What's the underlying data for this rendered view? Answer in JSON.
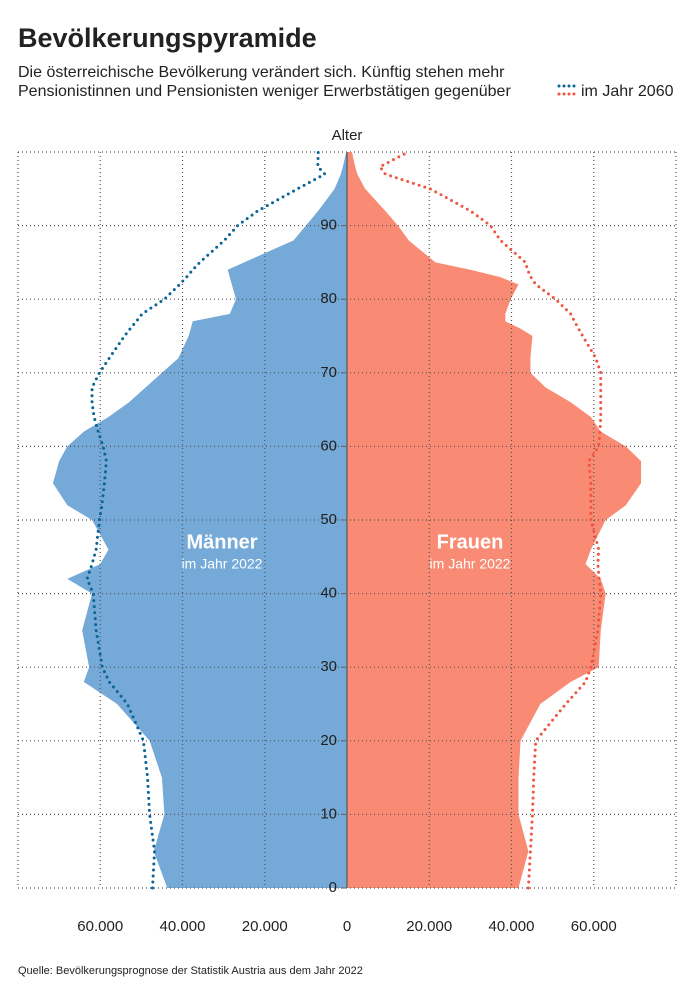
{
  "chart_data": {
    "type": "pyramid",
    "title": "Bevölkerungspyramide",
    "subtitle": [
      "Die österreichische Bevölkerung verändert sich. Künftig stehen mehr",
      "Pensionistinnen und Pensionisten weniger Erwerbstätigen gegenüber"
    ],
    "ylabel": "Alter",
    "source": "Quelle: Bevölkerungsprognose der Statistik Austria aus dem Jahr 2022",
    "ages": [
      0,
      5,
      10,
      15,
      20,
      25,
      28,
      30,
      35,
      40,
      42,
      44,
      46,
      50,
      52,
      55,
      58,
      60,
      62,
      64,
      66,
      68,
      70,
      72,
      75,
      76,
      77,
      78,
      80,
      82,
      83,
      84,
      85,
      88,
      90,
      92,
      95,
      97,
      98,
      100
    ],
    "xlim": [
      -80000,
      80000
    ],
    "xticks": [
      {
        "value": -60000,
        "label": "60.000"
      },
      {
        "value": -40000,
        "label": "40.000"
      },
      {
        "value": -20000,
        "label": "20.000"
      },
      0,
      {
        "value": 20000,
        "label": "20.000"
      },
      {
        "value": 40000,
        "label": "40.000"
      },
      {
        "value": 60000,
        "label": "60.000"
      }
    ],
    "ylim": [
      0,
      100
    ],
    "yticks": [
      0,
      10,
      20,
      30,
      40,
      50,
      60,
      70,
      80,
      90
    ],
    "grid": true,
    "series": [
      {
        "name": "Männer",
        "subtitle": "im Jahr 2022",
        "side": "left",
        "color": "#74a9d8",
        "values": [
          43700,
          47000,
          44400,
          45000,
          48000,
          55900,
          64000,
          62700,
          64400,
          62000,
          68000,
          60000,
          58000,
          62000,
          68000,
          71500,
          70000,
          68000,
          64000,
          58000,
          53000,
          49000,
          45000,
          41000,
          38500,
          38000,
          37500,
          28500,
          27000,
          28000,
          28500,
          29000,
          25000,
          13000,
          10000,
          7000,
          3000,
          1500,
          1000,
          200
        ]
      },
      {
        "name": "Frauen",
        "subtitle": "im Jahr 2022",
        "side": "right",
        "color": "#f98b74",
        "values": [
          41700,
          44100,
          41700,
          41700,
          42200,
          47000,
          54400,
          61200,
          61700,
          62900,
          61700,
          58000,
          59300,
          62900,
          67800,
          71500,
          71500,
          67800,
          61700,
          59300,
          54400,
          48300,
          44600,
          44600,
          45100,
          42200,
          38500,
          38500,
          39800,
          41700,
          37300,
          30000,
          21500,
          15000,
          12400,
          9300,
          4400,
          2500,
          2000,
          1200
        ]
      }
    ],
    "projection": {
      "name": "im Jahr 2060",
      "series": [
        {
          "side": "left",
          "color": "#0a6495",
          "values": [
            47300,
            46800,
            48000,
            48500,
            49500,
            53400,
            57800,
            59500,
            61000,
            61700,
            63200,
            62000,
            61000,
            60200,
            59600,
            59000,
            58500,
            59300,
            60500,
            61500,
            62000,
            62000,
            60200,
            57800,
            54100,
            52700,
            51200,
            49800,
            44400,
            40700,
            39000,
            37500,
            35800,
            29800,
            26600,
            21700,
            12000,
            5400,
            7100,
            7000
          ]
        },
        {
          "side": "right",
          "color": "#f0553f",
          "values": [
            44100,
            44600,
            45100,
            45400,
            45900,
            53200,
            58000,
            59300,
            61000,
            61700,
            61300,
            61000,
            61200,
            59300,
            59300,
            59300,
            58800,
            61200,
            61500,
            61700,
            61700,
            61700,
            61700,
            60500,
            57300,
            56300,
            55300,
            54400,
            50700,
            45900,
            44700,
            43900,
            43400,
            37300,
            34900,
            30000,
            20200,
            9300,
            8000,
            14900
          ]
        }
      ]
    }
  }
}
